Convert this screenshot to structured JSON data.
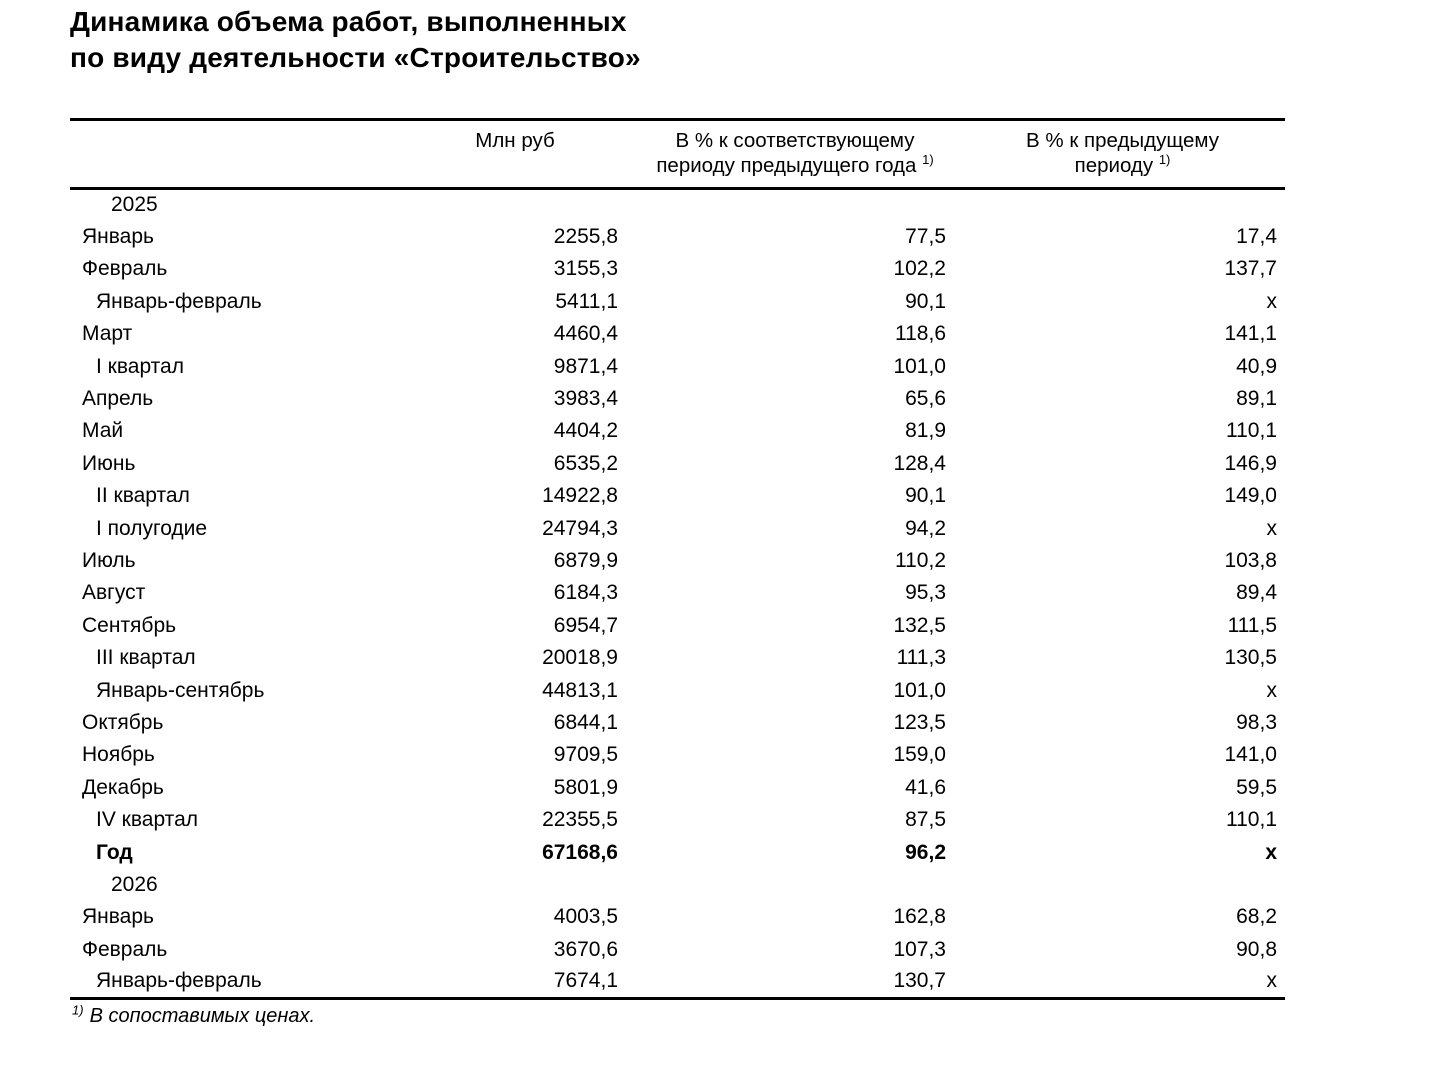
{
  "title": {
    "line1": "Динамика объема работ, выполненных",
    "line2": "по виду деятельности «Строительство»"
  },
  "table": {
    "header": {
      "col_mln": "Млн руб",
      "col_yoy_line1": "В % к соответствующему",
      "col_yoy_line2": "периоду предыдущего года",
      "col_prev_line1": "В % к предыдущему",
      "col_prev_line2": "периоду",
      "note_marker": "1)"
    },
    "rows": [
      {
        "label": "2025",
        "type": "year",
        "mln": "",
        "pct_yoy": "",
        "pct_prev": ""
      },
      {
        "label": "Январь",
        "type": "month",
        "mln": "2255,8",
        "pct_yoy": "77,5",
        "pct_prev": "17,4"
      },
      {
        "label": "Февраль",
        "type": "month",
        "mln": "3155,3",
        "pct_yoy": "102,2",
        "pct_prev": "137,7"
      },
      {
        "label": "Январь-февраль",
        "type": "subtotal",
        "mln": "5411,1",
        "pct_yoy": "90,1",
        "pct_prev": "х"
      },
      {
        "label": "Март",
        "type": "month",
        "mln": "4460,4",
        "pct_yoy": "118,6",
        "pct_prev": "141,1"
      },
      {
        "label": "I квартал",
        "type": "subtotal",
        "mln": "9871,4",
        "pct_yoy": "101,0",
        "pct_prev": "40,9"
      },
      {
        "label": "Апрель",
        "type": "month",
        "mln": "3983,4",
        "pct_yoy": "65,6",
        "pct_prev": "89,1"
      },
      {
        "label": "Май",
        "type": "month",
        "mln": "4404,2",
        "pct_yoy": "81,9",
        "pct_prev": "110,1"
      },
      {
        "label": "Июнь",
        "type": "month",
        "mln": "6535,2",
        "pct_yoy": "128,4",
        "pct_prev": "146,9"
      },
      {
        "label": "II квартал",
        "type": "subtotal",
        "mln": "14922,8",
        "pct_yoy": "90,1",
        "pct_prev": "149,0"
      },
      {
        "label": "I полугодие",
        "type": "subtotal",
        "mln": "24794,3",
        "pct_yoy": "94,2",
        "pct_prev": "х"
      },
      {
        "label": "Июль",
        "type": "month",
        "mln": "6879,9",
        "pct_yoy": "110,2",
        "pct_prev": "103,8"
      },
      {
        "label": "Август",
        "type": "month",
        "mln": "6184,3",
        "pct_yoy": "95,3",
        "pct_prev": "89,4"
      },
      {
        "label": "Сентябрь",
        "type": "month",
        "mln": "6954,7",
        "pct_yoy": "132,5",
        "pct_prev": "111,5"
      },
      {
        "label": "III квартал",
        "type": "subtotal",
        "mln": "20018,9",
        "pct_yoy": "111,3",
        "pct_prev": "130,5"
      },
      {
        "label": "Январь-сентябрь",
        "type": "subtotal",
        "mln": "44813,1",
        "pct_yoy": "101,0",
        "pct_prev": "х"
      },
      {
        "label": "Октябрь",
        "type": "month",
        "mln": "6844,1",
        "pct_yoy": "123,5",
        "pct_prev": "98,3"
      },
      {
        "label": "Ноябрь",
        "type": "month",
        "mln": "9709,5",
        "pct_yoy": "159,0",
        "pct_prev": "141,0"
      },
      {
        "label": "Декабрь",
        "type": "month",
        "mln": "5801,9",
        "pct_yoy": "41,6",
        "pct_prev": "59,5"
      },
      {
        "label": "IV квартал",
        "type": "subtotal",
        "mln": "22355,5",
        "pct_yoy": "87,5",
        "pct_prev": "110,1"
      },
      {
        "label": "Год",
        "type": "total",
        "mln": "67168,6",
        "pct_yoy": "96,2",
        "pct_prev": "х"
      },
      {
        "label": "2026",
        "type": "year",
        "mln": "",
        "pct_yoy": "",
        "pct_prev": ""
      },
      {
        "label": "Январь",
        "type": "month",
        "mln": "4003,5",
        "pct_yoy": "162,8",
        "pct_prev": "68,2"
      },
      {
        "label": "Февраль",
        "type": "month",
        "mln": "3670,6",
        "pct_yoy": "107,3",
        "pct_prev": "90,8"
      },
      {
        "label": "Январь-февраль",
        "type": "subtotal",
        "mln": "7674,1",
        "pct_yoy": "130,7",
        "pct_prev": "х"
      }
    ]
  },
  "footnote": {
    "marker": "1)",
    "text": "В сопоставимых ценах."
  }
}
